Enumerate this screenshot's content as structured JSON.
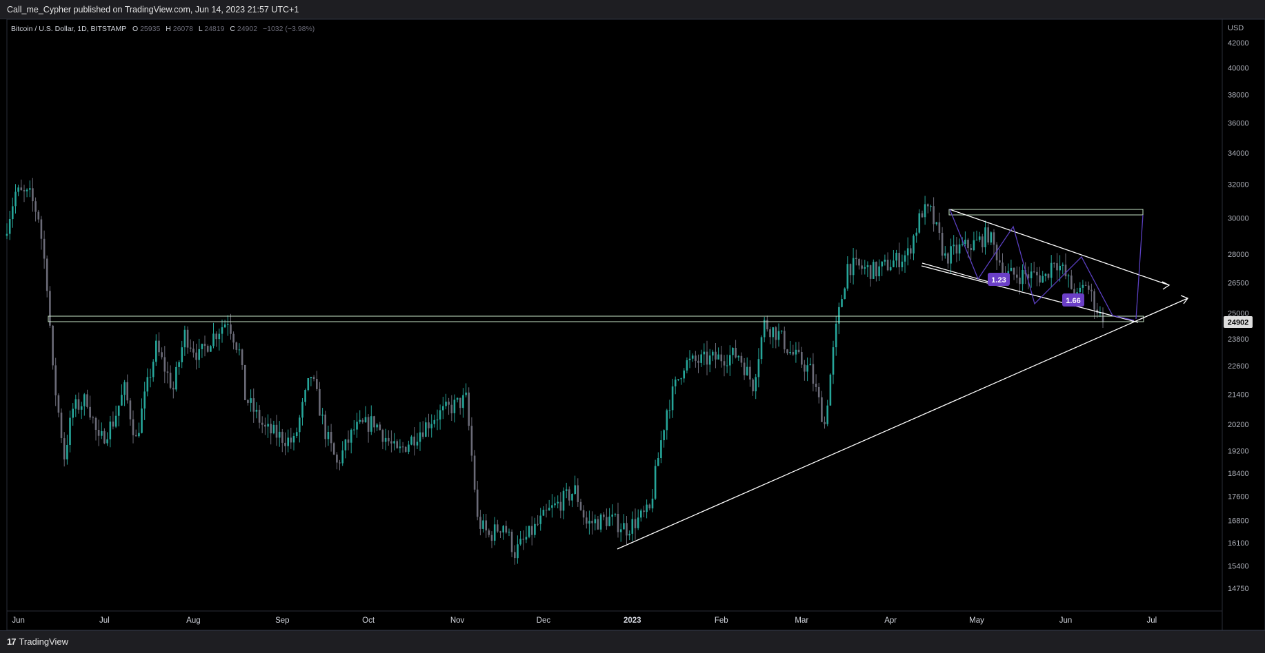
{
  "header": {
    "publisher_line": "Call_me_Cypher published on TradingView.com, Jun 14, 2023 21:57 UTC+1"
  },
  "footer": {
    "logo_glyph": "17",
    "logo_text": "TradingView"
  },
  "legend": {
    "symbol": "Bitcoin / U.S. Dollar, 1D, BITSTAMP",
    "open_label": "O",
    "open_value": "25935",
    "high_label": "H",
    "high_value": "26078",
    "low_label": "L",
    "low_value": "24819",
    "close_label": "C",
    "close_value": "24902",
    "change": "−1032 (−3.98%)"
  },
  "colors": {
    "background": "#000000",
    "up_candle": "#26a69a",
    "down_candle": "#6b6b78",
    "drawing": "#ffffff",
    "zone_border": "#c8e6c9",
    "pattern_line": "#5a3fc0",
    "label_bg": "#6b3fc7",
    "price_label_bg": "#dedede"
  },
  "chart_data": {
    "type": "candlestick",
    "symbol": "Bitcoin / U.S. Dollar",
    "interval": "1D",
    "exchange": "BITSTAMP",
    "currency": "USD",
    "last_price": "24902",
    "y_scale": "log",
    "y_ticks": [
      "42000",
      "40000",
      "38000",
      "36000",
      "34000",
      "32000",
      "30000",
      "28000",
      "26500",
      "25000",
      "23800",
      "22600",
      "21400",
      "20200",
      "19200",
      "18400",
      "17600",
      "16800",
      "16100",
      "15400",
      "14750"
    ],
    "x_ticks": [
      "Jun",
      "Jul",
      "Aug",
      "Sep",
      "Oct",
      "Nov",
      "Dec",
      "2023",
      "Feb",
      "Mar",
      "Apr",
      "May",
      "Jun",
      "Jul"
    ],
    "x_tick_dates": [
      "2022-06-01",
      "2022-07-01",
      "2022-08-01",
      "2022-09-01",
      "2022-10-01",
      "2022-11-01",
      "2022-12-01",
      "2023-01-01",
      "2023-02-01",
      "2023-03-01",
      "2023-04-01",
      "2023-05-01",
      "2023-06-01",
      "2023-07-01"
    ],
    "x_range": [
      "2022-05-28",
      "2023-07-15"
    ],
    "y_range": [
      14200,
      43800
    ],
    "path_anchors": [
      [
        "2022-05-28",
        29000
      ],
      [
        "2022-06-01",
        31500
      ],
      [
        "2022-06-06",
        31300
      ],
      [
        "2022-06-09",
        30100
      ],
      [
        "2022-06-12",
        26500
      ],
      [
        "2022-06-14",
        22300
      ],
      [
        "2022-06-18",
        19000
      ],
      [
        "2022-06-21",
        20800
      ],
      [
        "2022-06-26",
        21200
      ],
      [
        "2022-06-30",
        19500
      ],
      [
        "2022-07-05",
        20300
      ],
      [
        "2022-07-09",
        21600
      ],
      [
        "2022-07-13",
        19600
      ],
      [
        "2022-07-20",
        23400
      ],
      [
        "2022-07-26",
        21600
      ],
      [
        "2022-07-30",
        24000
      ],
      [
        "2022-08-04",
        23000
      ],
      [
        "2022-08-08",
        23800
      ],
      [
        "2022-08-14",
        24700
      ],
      [
        "2022-08-18",
        23200
      ],
      [
        "2022-08-20",
        21300
      ],
      [
        "2022-08-27",
        20000
      ],
      [
        "2022-09-06",
        19500
      ],
      [
        "2022-09-12",
        22200
      ],
      [
        "2022-09-17",
        19900
      ],
      [
        "2022-09-21",
        18700
      ],
      [
        "2022-09-27",
        20000
      ],
      [
        "2022-10-04",
        20300
      ],
      [
        "2022-10-12",
        19100
      ],
      [
        "2022-10-25",
        20500
      ],
      [
        "2022-11-05",
        21200
      ],
      [
        "2022-11-09",
        16800
      ],
      [
        "2022-11-13",
        16300
      ],
      [
        "2022-11-18",
        16700
      ],
      [
        "2022-11-22",
        15800
      ],
      [
        "2022-12-04",
        17100
      ],
      [
        "2022-12-13",
        17800
      ],
      [
        "2022-12-17",
        16700
      ],
      [
        "2022-12-25",
        16850
      ],
      [
        "2022-12-31",
        16550
      ],
      [
        "2023-01-08",
        17100
      ],
      [
        "2023-01-14",
        20800
      ],
      [
        "2023-01-20",
        22700
      ],
      [
        "2023-01-30",
        22900
      ],
      [
        "2023-02-08",
        23100
      ],
      [
        "2023-02-13",
        21800
      ],
      [
        "2023-02-17",
        24500
      ],
      [
        "2023-02-22",
        24000
      ],
      [
        "2023-02-26",
        23200
      ],
      [
        "2023-03-05",
        22400
      ],
      [
        "2023-03-10",
        20200
      ],
      [
        "2023-03-14",
        24200
      ],
      [
        "2023-03-18",
        27400
      ],
      [
        "2023-03-28",
        27100
      ],
      [
        "2023-04-08",
        28000
      ],
      [
        "2023-04-13",
        30400
      ],
      [
        "2023-04-16",
        30300
      ],
      [
        "2023-04-21",
        27800
      ],
      [
        "2023-04-26",
        28300
      ],
      [
        "2023-05-02",
        28600
      ],
      [
        "2023-05-06",
        29100
      ],
      [
        "2023-05-12",
        26900
      ],
      [
        "2023-05-20",
        26900
      ],
      [
        "2023-05-26",
        26800
      ],
      [
        "2023-05-29",
        27800
      ],
      [
        "2023-06-01",
        27100
      ],
      [
        "2023-06-06",
        25700
      ],
      [
        "2023-06-09",
        26500
      ],
      [
        "2023-06-11",
        25800
      ],
      [
        "2023-06-14",
        24902
      ]
    ],
    "annotations": [
      {
        "type": "label",
        "text": "1.23"
      },
      {
        "type": "label",
        "text": "1.66"
      }
    ]
  }
}
